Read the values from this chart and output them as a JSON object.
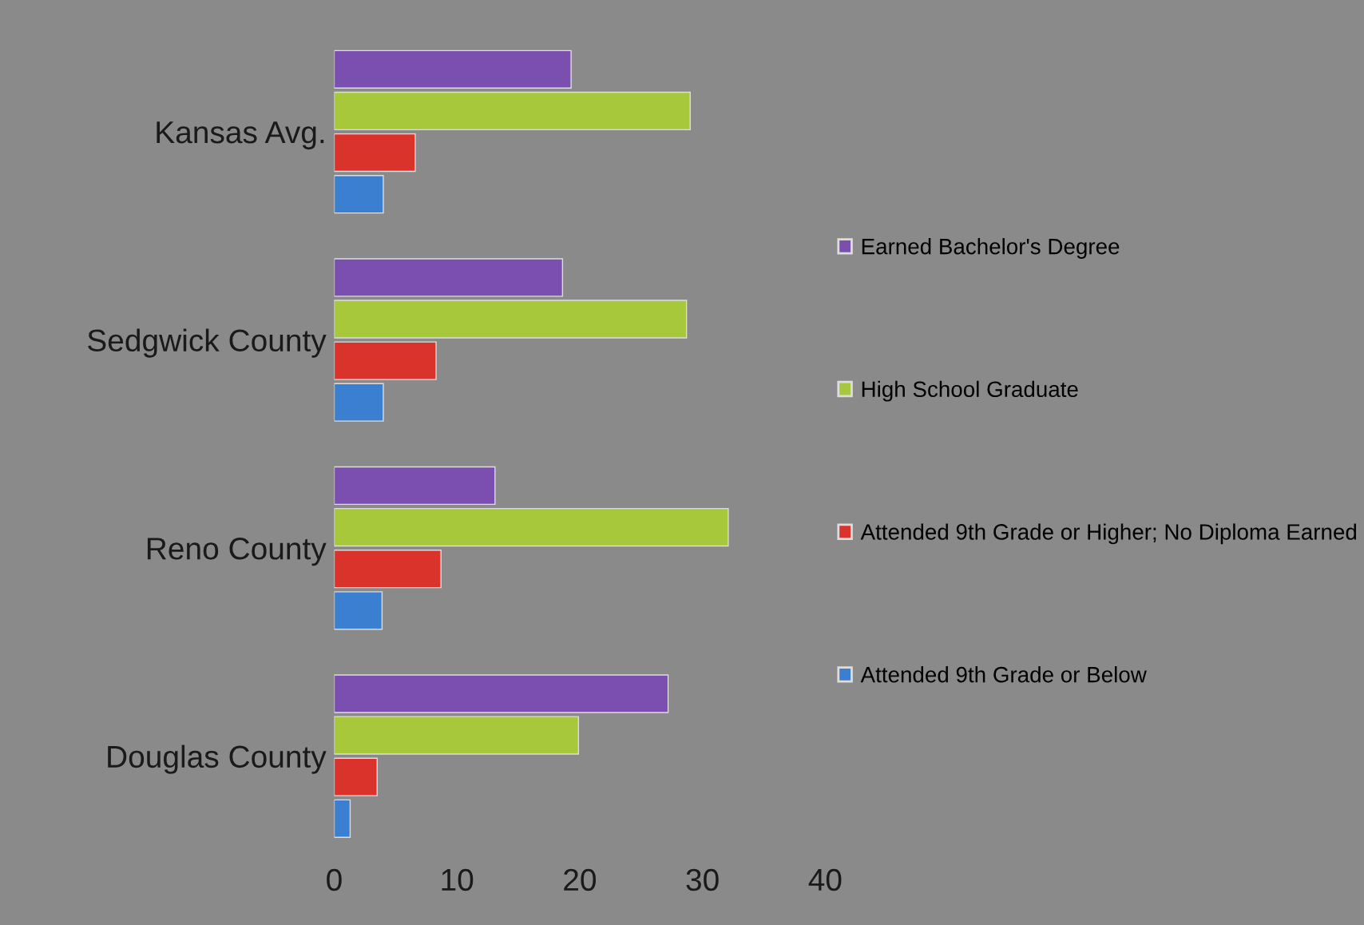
{
  "chart_data": {
    "type": "bar",
    "orientation": "horizontal",
    "categories": [
      "Kansas Avg.",
      "Sedgwick County",
      "Reno County",
      "Douglas County"
    ],
    "series": [
      {
        "name": "Earned Bachelor's Degree",
        "color": "#7b4fb0",
        "values": [
          19.3,
          18.6,
          13.1,
          27.2
        ]
      },
      {
        "name": "High School Graduate",
        "color": "#a6c83a",
        "values": [
          29,
          28.7,
          32.1,
          19.9
        ]
      },
      {
        "name": "Attended 9th Grade or Higher; No Diploma Earned",
        "color": "#d9332b",
        "values": [
          6.6,
          8.3,
          8.7,
          3.5
        ]
      },
      {
        "name": "Attended 9th Grade or Below",
        "color": "#3a7fd0",
        "values": [
          4,
          4,
          3.9,
          1.3
        ]
      }
    ],
    "xlim": [
      0,
      40
    ],
    "xticks": [
      0,
      10,
      20,
      30,
      40
    ],
    "grid": false,
    "legend": "right"
  }
}
